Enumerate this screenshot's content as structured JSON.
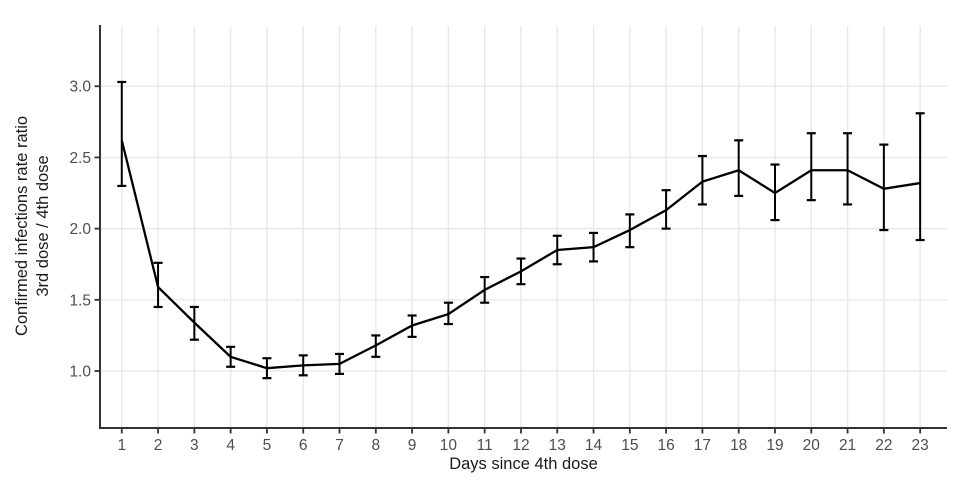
{
  "chart_data": {
    "type": "line",
    "title": "",
    "xlabel": "Days since 4th dose",
    "ylabel_lines": [
      "Confirmed infections rate ratio",
      "3rd dose / 4th dose"
    ],
    "x": [
      1,
      2,
      3,
      4,
      5,
      6,
      7,
      8,
      9,
      10,
      11,
      12,
      13,
      14,
      15,
      16,
      17,
      18,
      19,
      20,
      21,
      22,
      23
    ],
    "x_tick_labels": [
      "1",
      "2",
      "3",
      "4",
      "5",
      "6",
      "7",
      "8",
      "9",
      "10",
      "11",
      "12",
      "13",
      "14",
      "15",
      "16",
      "17",
      "18",
      "19",
      "20",
      "21",
      "22",
      "23"
    ],
    "y_ticks": [
      1.0,
      1.5,
      2.0,
      2.5,
      3.0
    ],
    "y_tick_labels": [
      "1.0",
      "1.5",
      "2.0",
      "2.5",
      "3.0"
    ],
    "xlim": [
      0.4,
      23.74
    ],
    "ylim": [
      0.6,
      3.43
    ],
    "grid": true,
    "legend": false,
    "error_bars": true,
    "series": [
      {
        "name": "Confirmed infections rate ratio, 3rd dose / 4th dose",
        "values": [
          2.62,
          1.59,
          1.34,
          1.1,
          1.02,
          1.04,
          1.05,
          1.18,
          1.32,
          1.4,
          1.57,
          1.7,
          1.85,
          1.87,
          1.99,
          2.13,
          2.33,
          2.41,
          2.25,
          2.41,
          2.41,
          2.28,
          2.32
        ],
        "ci_lower": [
          2.3,
          1.45,
          1.22,
          1.03,
          0.95,
          0.97,
          0.98,
          1.1,
          1.24,
          1.33,
          1.48,
          1.61,
          1.75,
          1.77,
          1.87,
          2.0,
          2.17,
          2.23,
          2.06,
          2.2,
          2.17,
          1.99,
          1.92
        ],
        "ci_upper": [
          3.03,
          1.76,
          1.45,
          1.17,
          1.09,
          1.11,
          1.12,
          1.25,
          1.39,
          1.48,
          1.66,
          1.79,
          1.95,
          1.97,
          2.1,
          2.27,
          2.51,
          2.62,
          2.45,
          2.67,
          2.67,
          2.59,
          2.81
        ]
      }
    ],
    "colors": {
      "line": "#000000",
      "error_bar": "#000000",
      "grid": "#e8e8e8",
      "axis": "#333333",
      "tick_label": "#4d4d4d",
      "axis_title": "#1a1a1a",
      "background": "#ffffff"
    }
  }
}
